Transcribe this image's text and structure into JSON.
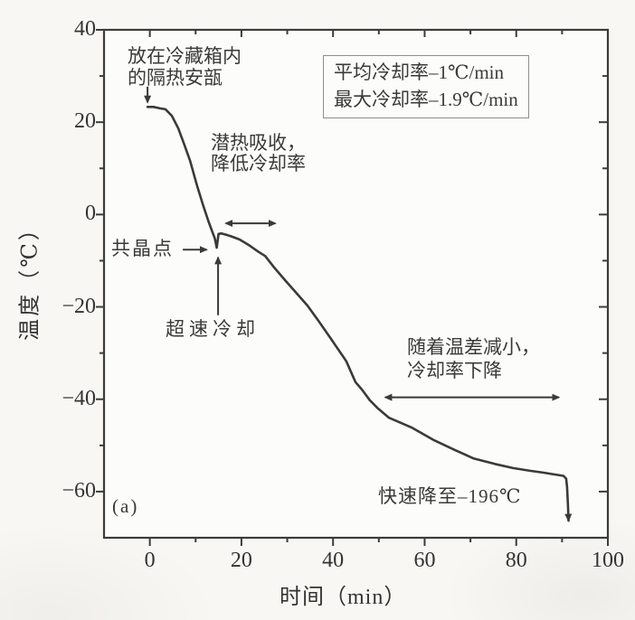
{
  "colors": {
    "ink": "#3a3a3a",
    "frame": "#3c3c3c",
    "text": "#333333",
    "legend_border": "#8f8f8f",
    "background": "#f8f7f3"
  },
  "chart_data": {
    "type": "line",
    "title": "",
    "xlabel": "时间（min）",
    "ylabel": "温度（℃）",
    "xlim": [
      -10,
      100
    ],
    "ylim": [
      -70,
      40
    ],
    "x_ticks": [
      0,
      20,
      40,
      60,
      80,
      100
    ],
    "y_ticks": [
      40,
      20,
      0,
      -20,
      -40,
      -60
    ],
    "minor_tick_step": 10,
    "grid": false,
    "legend": {
      "position": "top-right",
      "lines": [
        "平均冷却率–1℃/min",
        "最大冷却率–1.9℃/min"
      ]
    },
    "series": [
      {
        "name": "cooling-curve",
        "end_marker": "arrow-down",
        "points": [
          [
            -0.5,
            23.3
          ],
          [
            0.8,
            23.3
          ],
          [
            2.2,
            23.0
          ],
          [
            3.4,
            22.8
          ],
          [
            4.8,
            21.4
          ],
          [
            6.2,
            18.7
          ],
          [
            7.4,
            15.5
          ],
          [
            8.8,
            11.6
          ],
          [
            10.3,
            6.3
          ],
          [
            11.7,
            1.8
          ],
          [
            12.8,
            -1.5
          ],
          [
            13.6,
            -3.6
          ],
          [
            14.2,
            -5.2
          ],
          [
            14.6,
            -7.2
          ],
          [
            15.0,
            -4.2
          ],
          [
            15.6,
            -4.1
          ],
          [
            16.7,
            -4.4
          ],
          [
            17.7,
            -4.7
          ],
          [
            19.6,
            -5.4
          ],
          [
            21.6,
            -6.6
          ],
          [
            23.6,
            -8.0
          ],
          [
            25.2,
            -9.0
          ],
          [
            27.0,
            -11.3
          ],
          [
            29.5,
            -14.2
          ],
          [
            32.0,
            -17.0
          ],
          [
            34.4,
            -19.7
          ],
          [
            36.8,
            -23.0
          ],
          [
            39.8,
            -27.3
          ],
          [
            42.9,
            -31.8
          ],
          [
            44.9,
            -36.3
          ],
          [
            46.3,
            -37.9
          ],
          [
            48.0,
            -40.2
          ],
          [
            49.8,
            -42.0
          ],
          [
            52.2,
            -44.0
          ],
          [
            57.1,
            -46.1
          ],
          [
            62.1,
            -48.9
          ],
          [
            66.6,
            -51.0
          ],
          [
            70.6,
            -52.8
          ],
          [
            75.3,
            -54.0
          ],
          [
            79.3,
            -54.9
          ],
          [
            83.0,
            -55.5
          ],
          [
            86.0,
            -55.9
          ],
          [
            88.4,
            -56.3
          ],
          [
            90.3,
            -56.6
          ],
          [
            90.9,
            -57.2
          ],
          [
            91.1,
            -59.0
          ],
          [
            91.3,
            -63.0
          ],
          [
            91.4,
            -66.3
          ]
        ]
      }
    ],
    "annotations": {
      "ampoule": {
        "line1": "放在冷藏箱内",
        "line2": "的隔热安瓿"
      },
      "latent": {
        "line1": "潜热吸收，",
        "line2": "降低冷却率"
      },
      "eutectic": {
        "text": "共晶点"
      },
      "supercool": {
        "text": "超速冷却"
      },
      "tempdiff": {
        "line1": "随着温差减小，",
        "line2": "冷却率下降"
      },
      "rapid": {
        "text": "快速降至–196℃"
      },
      "figure_label": "(a)"
    },
    "arrows": [
      {
        "name": "ampoule-pointer",
        "x1": -0.5,
        "y1": 27.7,
        "x2": -0.5,
        "y2": 24.3,
        "heads": "end"
      },
      {
        "name": "eutectic-pointer",
        "x1": 7.2,
        "y1": -7.6,
        "x2": 12.4,
        "y2": -7.6,
        "heads": "end"
      },
      {
        "name": "supercool-pointer",
        "x1": 14.9,
        "y1": -21.8,
        "x2": 14.9,
        "y2": -9.3,
        "heads": "end"
      },
      {
        "name": "latent-span",
        "x1": 16.6,
        "y1": -1.9,
        "x2": 27.4,
        "y2": -1.9,
        "heads": "both"
      },
      {
        "name": "tempdiff-span",
        "x1": 51.4,
        "y1": -39.6,
        "x2": 89.3,
        "y2": -39.6,
        "heads": "both"
      }
    ]
  }
}
